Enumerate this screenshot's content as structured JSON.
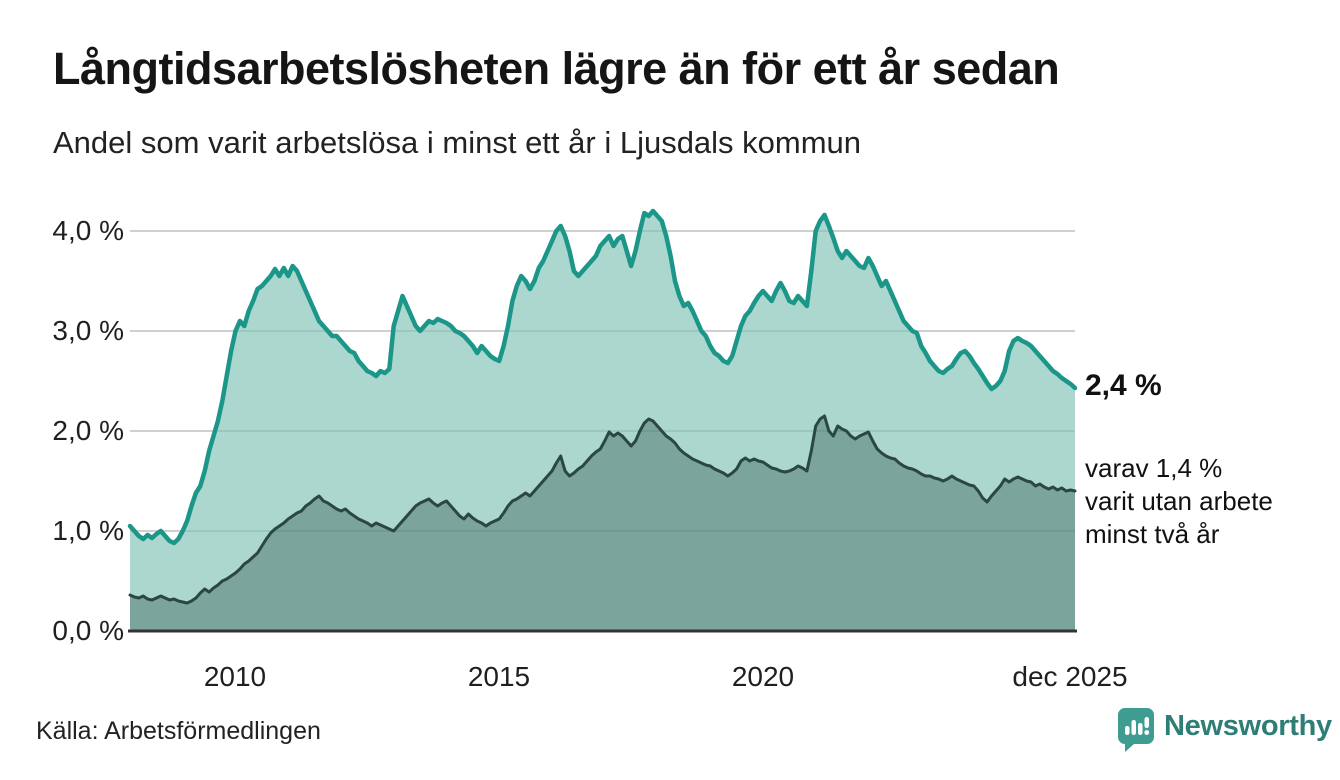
{
  "header": {
    "title": "Långtidsarbetslösheten lägre än för ett år sedan",
    "subtitle": "Andel som varit arbetslösa i minst ett år i Ljusdals kommun"
  },
  "chart_data": {
    "type": "area",
    "title": "Långtidsarbetslösheten lägre än för ett år sedan",
    "subtitle": "Andel som varit arbetslösa i minst ett år i Ljusdals kommun",
    "unit": "%",
    "x_domain": "monthly from 2008-01 to 2025-12",
    "ylim": [
      0,
      4.4
    ],
    "grid": true,
    "legend_position": "none",
    "yticks": [
      {
        "value": 4.0,
        "label": "4,0 %"
      },
      {
        "value": 3.0,
        "label": "3,0 %"
      },
      {
        "value": 2.0,
        "label": "2,0 %"
      },
      {
        "value": 1.0,
        "label": "1,0 %"
      },
      {
        "value": 0.0,
        "label": "0,0 %"
      }
    ],
    "xticks": [
      {
        "month_index": 24,
        "label": "2010"
      },
      {
        "month_index": 84,
        "label": "2015"
      },
      {
        "month_index": 144,
        "label": "2020"
      },
      {
        "month_index": 215,
        "label": "dec 2025"
      }
    ],
    "series": [
      {
        "name": "Andel arbetslösa minst ett år",
        "line_color": "#1b9688",
        "fill_color": "#abd7cf",
        "end_value_label": "2,4 %",
        "values": [
          1.05,
          1.0,
          0.95,
          0.92,
          0.96,
          0.93,
          0.97,
          1.0,
          0.95,
          0.9,
          0.88,
          0.92,
          1.0,
          1.1,
          1.25,
          1.38,
          1.45,
          1.6,
          1.8,
          1.95,
          2.1,
          2.3,
          2.55,
          2.8,
          3.0,
          3.1,
          3.05,
          3.2,
          3.3,
          3.42,
          3.45,
          3.5,
          3.55,
          3.62,
          3.55,
          3.63,
          3.55,
          3.65,
          3.6,
          3.5,
          3.4,
          3.3,
          3.2,
          3.1,
          3.05,
          3.0,
          2.95,
          2.95,
          2.9,
          2.85,
          2.8,
          2.78,
          2.7,
          2.65,
          2.6,
          2.58,
          2.55,
          2.6,
          2.58,
          2.62,
          3.05,
          3.2,
          3.35,
          3.25,
          3.15,
          3.05,
          3.0,
          3.05,
          3.1,
          3.08,
          3.12,
          3.1,
          3.08,
          3.05,
          3.0,
          2.98,
          2.95,
          2.9,
          2.85,
          2.78,
          2.85,
          2.8,
          2.75,
          2.72,
          2.7,
          2.85,
          3.05,
          3.3,
          3.45,
          3.55,
          3.5,
          3.42,
          3.5,
          3.63,
          3.7,
          3.8,
          3.9,
          4.0,
          4.05,
          3.95,
          3.8,
          3.6,
          3.55,
          3.6,
          3.65,
          3.7,
          3.75,
          3.85,
          3.9,
          3.95,
          3.85,
          3.92,
          3.95,
          3.8,
          3.65,
          3.8,
          4.0,
          4.18,
          4.15,
          4.2,
          4.15,
          4.1,
          3.95,
          3.75,
          3.5,
          3.35,
          3.25,
          3.28,
          3.2,
          3.1,
          3.0,
          2.95,
          2.85,
          2.78,
          2.75,
          2.7,
          2.68,
          2.75,
          2.9,
          3.05,
          3.15,
          3.2,
          3.28,
          3.35,
          3.4,
          3.35,
          3.3,
          3.4,
          3.48,
          3.4,
          3.3,
          3.28,
          3.35,
          3.3,
          3.25,
          3.6,
          4.0,
          4.1,
          4.16,
          4.05,
          3.93,
          3.8,
          3.73,
          3.8,
          3.75,
          3.7,
          3.65,
          3.63,
          3.73,
          3.65,
          3.55,
          3.45,
          3.5,
          3.4,
          3.3,
          3.2,
          3.1,
          3.05,
          3.0,
          2.98,
          2.85,
          2.78,
          2.7,
          2.65,
          2.6,
          2.58,
          2.62,
          2.65,
          2.72,
          2.78,
          2.8,
          2.75,
          2.68,
          2.62,
          2.55,
          2.48,
          2.42,
          2.45,
          2.5,
          2.6,
          2.8,
          2.9,
          2.93,
          2.9,
          2.88,
          2.85,
          2.8,
          2.75,
          2.7,
          2.65,
          2.6,
          2.57,
          2.53,
          2.5,
          2.47,
          2.43
        ]
      },
      {
        "name": "varav utan arbete minst två år",
        "line_color": "#2b4743",
        "fill_color": "#7ba59c",
        "end_value_label": "1,4 %",
        "values": [
          0.36,
          0.34,
          0.33,
          0.35,
          0.32,
          0.31,
          0.33,
          0.35,
          0.33,
          0.31,
          0.32,
          0.3,
          0.29,
          0.28,
          0.3,
          0.33,
          0.38,
          0.42,
          0.39,
          0.43,
          0.46,
          0.5,
          0.52,
          0.55,
          0.58,
          0.62,
          0.67,
          0.7,
          0.74,
          0.78,
          0.85,
          0.92,
          0.98,
          1.02,
          1.05,
          1.08,
          1.12,
          1.15,
          1.18,
          1.2,
          1.25,
          1.28,
          1.32,
          1.35,
          1.3,
          1.28,
          1.25,
          1.22,
          1.2,
          1.22,
          1.18,
          1.15,
          1.12,
          1.1,
          1.08,
          1.05,
          1.08,
          1.06,
          1.04,
          1.02,
          1.0,
          1.05,
          1.1,
          1.15,
          1.2,
          1.25,
          1.28,
          1.3,
          1.32,
          1.28,
          1.25,
          1.28,
          1.3,
          1.25,
          1.2,
          1.15,
          1.12,
          1.17,
          1.13,
          1.1,
          1.08,
          1.05,
          1.08,
          1.1,
          1.12,
          1.18,
          1.25,
          1.3,
          1.32,
          1.35,
          1.38,
          1.35,
          1.4,
          1.45,
          1.5,
          1.55,
          1.6,
          1.68,
          1.75,
          1.6,
          1.55,
          1.58,
          1.62,
          1.65,
          1.7,
          1.75,
          1.79,
          1.82,
          1.9,
          1.99,
          1.95,
          1.98,
          1.95,
          1.9,
          1.85,
          1.9,
          2.0,
          2.08,
          2.12,
          2.1,
          2.05,
          2.0,
          1.95,
          1.92,
          1.88,
          1.82,
          1.78,
          1.75,
          1.72,
          1.7,
          1.68,
          1.66,
          1.65,
          1.62,
          1.6,
          1.58,
          1.55,
          1.58,
          1.62,
          1.7,
          1.73,
          1.7,
          1.72,
          1.7,
          1.69,
          1.66,
          1.63,
          1.62,
          1.6,
          1.59,
          1.6,
          1.62,
          1.65,
          1.63,
          1.6,
          1.8,
          2.05,
          2.12,
          2.15,
          2.0,
          1.95,
          2.05,
          2.02,
          2.0,
          1.95,
          1.92,
          1.95,
          1.97,
          1.99,
          1.9,
          1.82,
          1.78,
          1.75,
          1.73,
          1.72,
          1.68,
          1.65,
          1.63,
          1.62,
          1.6,
          1.57,
          1.55,
          1.55,
          1.53,
          1.52,
          1.5,
          1.52,
          1.55,
          1.52,
          1.5,
          1.48,
          1.46,
          1.45,
          1.4,
          1.33,
          1.29,
          1.35,
          1.4,
          1.45,
          1.52,
          1.49,
          1.52,
          1.54,
          1.52,
          1.5,
          1.49,
          1.45,
          1.47,
          1.44,
          1.42,
          1.44,
          1.41,
          1.43,
          1.4,
          1.41,
          1.4
        ]
      }
    ]
  },
  "annotations": {
    "end_value": "2,4 %",
    "sub_annotation_line1": "varav 1,4 %",
    "sub_annotation_line2": "varit utan arbete",
    "sub_annotation_line3": "minst två år"
  },
  "footer": {
    "source": "Källa: Arbetsförmedlingen",
    "brand": "Newsworthy"
  },
  "colors": {
    "accent_teal": "#1b9688",
    "light_fill": "#abd7cf",
    "dark_line": "#2b4743",
    "dark_fill": "#7ba59c",
    "gridline": "#e3e3e3",
    "axis": "#333333",
    "brand_icon": "#3e9c90",
    "brand_text": "#2f7e76"
  }
}
